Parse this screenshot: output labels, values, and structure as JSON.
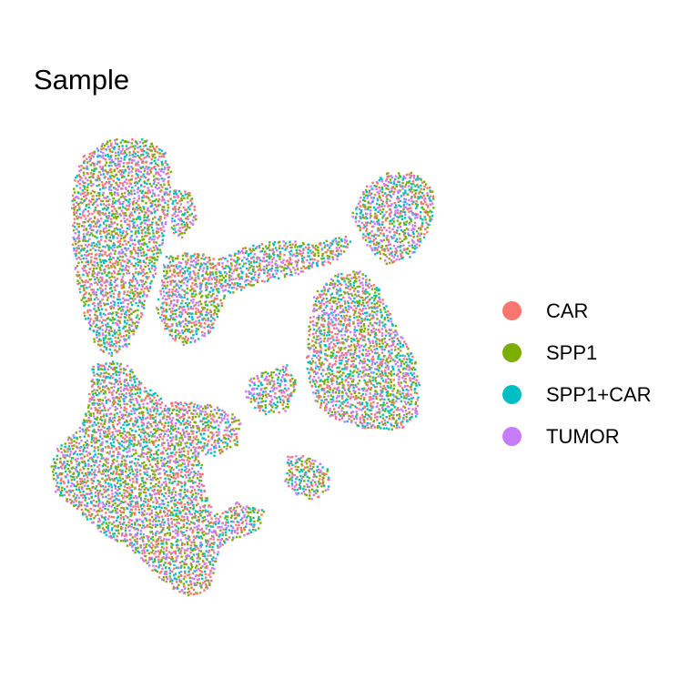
{
  "chart_data": {
    "type": "scatter",
    "title": "Sample",
    "xlabel": "",
    "ylabel": "",
    "grid": false,
    "axes_visible": false,
    "legend_position": "right",
    "point_shape": "dense point cloud (UMAP-style embedding)",
    "series": [
      {
        "name": "CAR",
        "color": "#F8766D"
      },
      {
        "name": "SPP1",
        "color": "#7CAE00"
      },
      {
        "name": "SPP1+CAR",
        "color": "#00BFC4"
      },
      {
        "name": "TUMOR",
        "color": "#C77CFF"
      }
    ]
  }
}
